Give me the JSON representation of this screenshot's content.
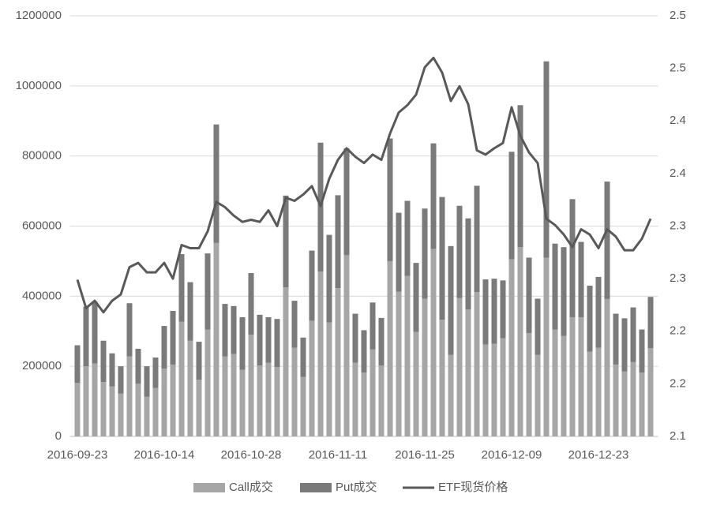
{
  "chart_data": {
    "type": "bar",
    "categories": [
      "2016-09-23",
      null,
      null,
      null,
      null,
      null,
      null,
      null,
      null,
      null,
      "2016-10-14",
      null,
      null,
      null,
      null,
      null,
      null,
      null,
      null,
      null,
      "2016-10-28",
      null,
      null,
      null,
      null,
      null,
      null,
      null,
      null,
      null,
      "2016-11-11",
      null,
      null,
      null,
      null,
      null,
      null,
      null,
      null,
      null,
      "2016-11-25",
      null,
      null,
      null,
      null,
      null,
      null,
      null,
      null,
      null,
      "2016-12-09",
      null,
      null,
      null,
      null,
      null,
      null,
      null,
      null,
      null,
      "2016-12-23",
      null,
      null,
      null,
      null,
      null,
      null
    ],
    "series": [
      {
        "name": "Call成交",
        "type": "bar",
        "color": "#a6a6a6",
        "values": [
          153000,
          200000,
          208000,
          155000,
          143000,
          122000,
          228000,
          150000,
          113000,
          138000,
          193000,
          205000,
          327000,
          273000,
          162000,
          305000,
          552000,
          228000,
          235000,
          190000,
          290000,
          202000,
          210000,
          198000,
          425000,
          253000,
          170000,
          330000,
          470000,
          325000,
          423000,
          517000,
          210000,
          182000,
          248000,
          202000,
          500000,
          413000,
          458000,
          298000,
          393000,
          535000,
          333000,
          233000,
          395000,
          362000,
          412000,
          262000,
          264000,
          280000,
          505000,
          540000,
          295000,
          233000,
          510000,
          305000,
          287000,
          340000,
          340000,
          242000,
          253000,
          392000,
          205000,
          185000,
          212000,
          182000,
          252000
        ]
      },
      {
        "name": "Put成交",
        "type": "bar",
        "color": "#7a7a7a",
        "values": [
          107000,
          170000,
          177000,
          118000,
          94000,
          78000,
          152000,
          100000,
          87000,
          87000,
          122000,
          153000,
          193000,
          167000,
          108000,
          217000,
          338000,
          150000,
          137000,
          150000,
          176000,
          145000,
          130000,
          137000,
          262000,
          134000,
          112000,
          200000,
          368000,
          250000,
          265000,
          305000,
          140000,
          121000,
          134000,
          136000,
          350000,
          225000,
          214000,
          197000,
          257000,
          301000,
          350000,
          310000,
          263000,
          260000,
          303000,
          186000,
          186000,
          165000,
          307000,
          405000,
          215000,
          160000,
          560000,
          245000,
          253000,
          337000,
          215000,
          188000,
          202000,
          335000,
          145000,
          152000,
          156000,
          123000,
          146000
        ]
      },
      {
        "name": "ETF现货价格",
        "type": "line",
        "axis": "y2",
        "color": "#595959",
        "values": [
          2.249,
          2.222,
          2.229,
          2.218,
          2.229,
          2.235,
          2.261,
          2.265,
          2.256,
          2.256,
          2.265,
          2.25,
          2.282,
          2.279,
          2.279,
          2.295,
          2.323,
          2.318,
          2.31,
          2.304,
          2.306,
          2.304,
          2.315,
          2.3,
          2.327,
          2.324,
          2.33,
          2.338,
          2.319,
          2.345,
          2.363,
          2.374,
          2.366,
          2.36,
          2.368,
          2.363,
          2.388,
          2.408,
          2.415,
          2.425,
          2.451,
          2.46,
          2.446,
          2.419,
          2.433,
          2.416,
          2.372,
          2.368,
          2.374,
          2.379,
          2.413,
          2.386,
          2.37,
          2.36,
          2.307,
          2.301,
          2.292,
          2.28,
          2.297,
          2.292,
          2.279,
          2.297,
          2.29,
          2.277,
          2.277,
          2.288,
          2.307
        ]
      }
    ],
    "stacked": true,
    "ylim": [
      0,
      1200000
    ],
    "yticks": [
      0,
      200000,
      400000,
      600000,
      800000,
      1000000,
      1200000
    ],
    "y2lim": [
      2.1,
      2.5
    ],
    "y2ticks": [
      2.1,
      {
        "value": 2.15,
        "label": "2.2"
      },
      {
        "value": 2.2,
        "label": "2.2"
      },
      {
        "value": 2.25,
        "label": "2.3"
      },
      {
        "value": 2.3,
        "label": "2.3"
      },
      {
        "value": 2.35,
        "label": "2.4"
      },
      {
        "value": 2.4,
        "label": "2.4"
      },
      {
        "value": 2.45,
        "label": "2.5"
      },
      2.5
    ],
    "grid": true,
    "legend": "bottom"
  }
}
